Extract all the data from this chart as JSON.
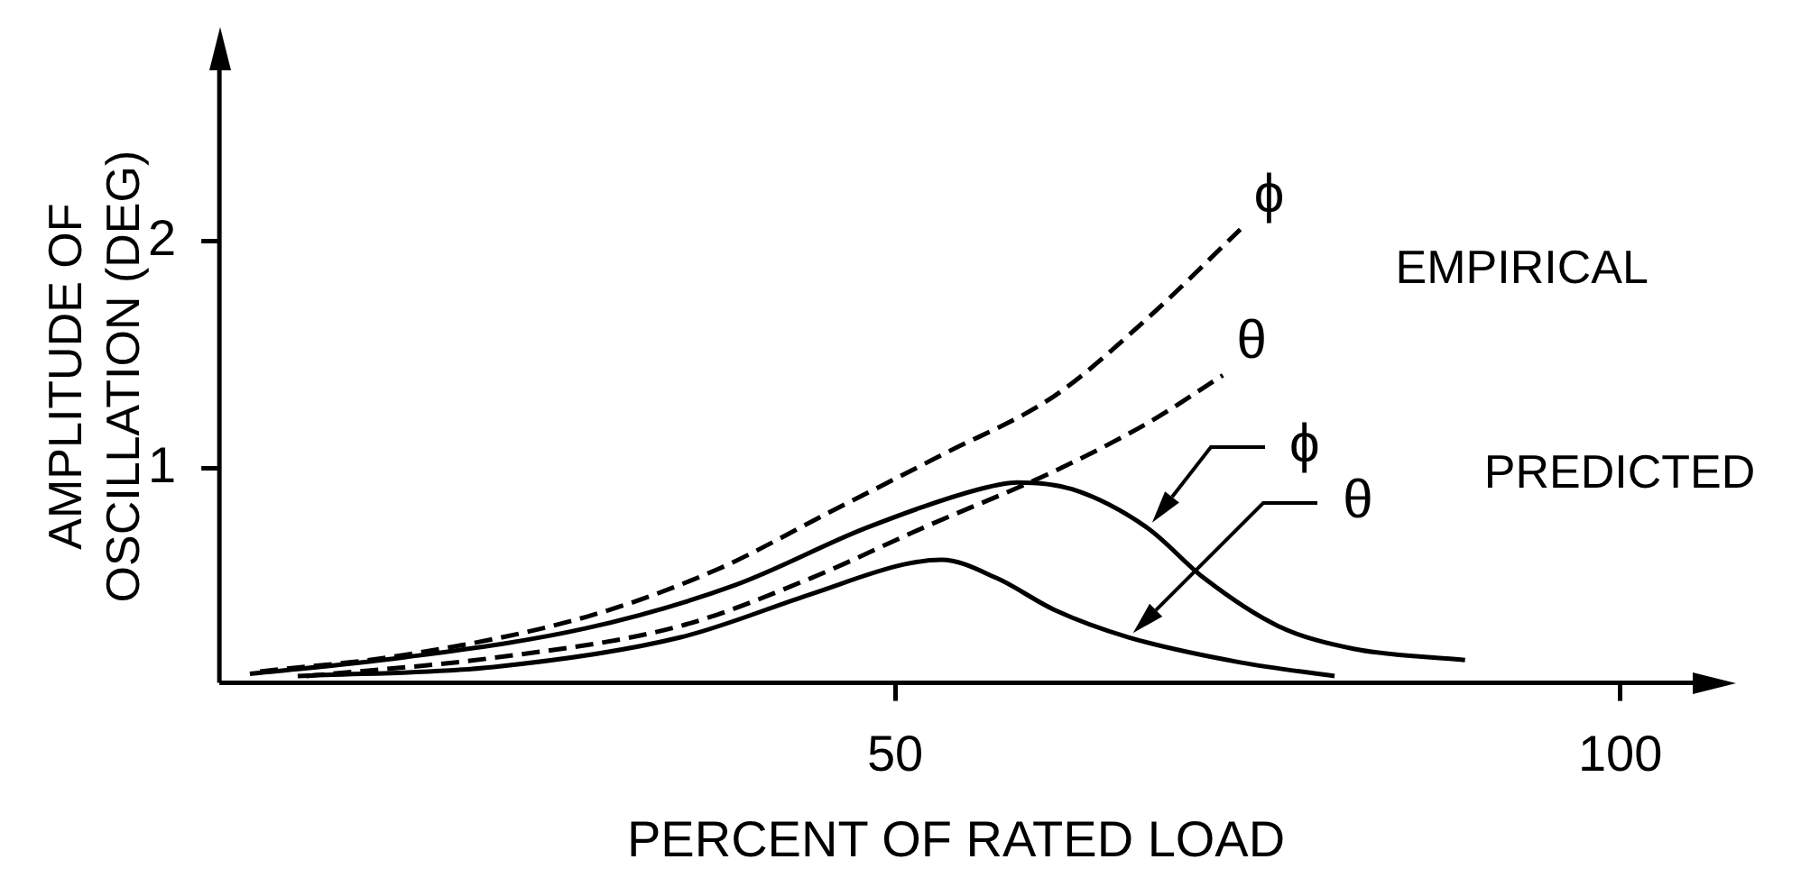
{
  "chart_data": {
    "type": "line",
    "xlabel": "PERCENT OF RATED LOAD",
    "ylabel": "AMPLITUDE OF\nOSCILLATION (DEG)",
    "xlim": [
      3.4,
      105
    ],
    "ylim": [
      0.06,
      2.75
    ],
    "xticks": [
      50,
      100
    ],
    "yticks": [
      1,
      2
    ],
    "grid": false,
    "legend": "right",
    "marker": "none",
    "annotations": [
      "EMPIRICAL",
      "PREDICTED"
    ],
    "series": [
      {
        "name": "ϕ",
        "color": "#000000",
        "line_style": "dashed",
        "x": [
          6.2,
          15.9,
          28.7,
          37.8,
          45.5,
          53.2,
          61,
          67.4,
          73.8
        ],
        "values": [
          0.11,
          0.18,
          0.35,
          0.56,
          0.81,
          1.06,
          1.32,
          1.66,
          2.05
        ]
      },
      {
        "name": "θ",
        "color": "#000000",
        "line_style": "dashed",
        "x": [
          9.4,
          22.3,
          35.2,
          44.2,
          51.9,
          61,
          67.4,
          72.6
        ],
        "values": [
          0.09,
          0.17,
          0.31,
          0.52,
          0.74,
          0.99,
          1.2,
          1.41
        ]
      },
      {
        "name": "ϕ",
        "color": "#000000",
        "line_style": "solid",
        "x": [
          5.5,
          15.9,
          28.7,
          39,
          48,
          55.8,
          58.4,
          62.2,
          67.4,
          71.3,
          76.4,
          81.6,
          89.3
        ],
        "values": [
          0.1,
          0.17,
          0.3,
          0.49,
          0.74,
          0.91,
          0.94,
          0.91,
          0.74,
          0.52,
          0.31,
          0.21,
          0.16
        ]
      },
      {
        "name": "θ",
        "color": "#000000",
        "line_style": "solid",
        "x": [
          8.8,
          22.3,
          35.2,
          44.2,
          50.6,
          53.2,
          57,
          61,
          66.1,
          73.8,
          80.3
        ],
        "values": [
          0.09,
          0.13,
          0.26,
          0.45,
          0.58,
          0.6,
          0.52,
          0.38,
          0.26,
          0.15,
          0.09
        ]
      }
    ]
  }
}
